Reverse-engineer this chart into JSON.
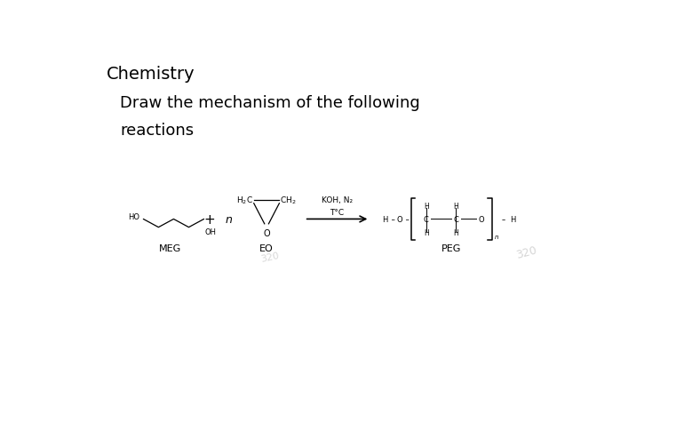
{
  "title": "Chemistry",
  "subtitle_line1": "Draw the mechanism of the following",
  "subtitle_line2": "reactions",
  "title_fontsize": 14,
  "subtitle_fontsize": 13,
  "background_color": "#ffffff",
  "text_color": "#000000",
  "chem_fontsize": 6.5,
  "label_fontsize": 8,
  "arrow_label_line1": "KOH, N₂",
  "arrow_label_line2": "T°C",
  "meg_label": "MEG",
  "eo_label": "EO",
  "peg_label": "PEG",
  "watermark": "320"
}
